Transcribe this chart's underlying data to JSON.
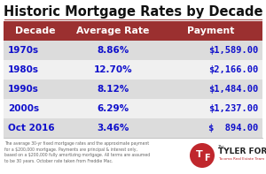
{
  "title": "Historic Mortgage Rates by Decade",
  "headers": [
    "Decade",
    "Average Rate",
    "Payment"
  ],
  "rows": [
    [
      "1970s",
      "8.86%",
      "$1,589.00"
    ],
    [
      "1980s",
      "12.70%",
      "$2,166.00"
    ],
    [
      "1990s",
      "8.12%",
      "$1,484.00"
    ],
    [
      "2000s",
      "6.29%",
      "$1,237.00"
    ],
    [
      "Oct 2016",
      "3.46%",
      "$  894.00"
    ]
  ],
  "header_bg": "#9B3030",
  "header_text": "#FFFFFF",
  "row_bg_light": "#DCDCDC",
  "row_bg_white": "#F0F0F0",
  "row_text": "#1010CC",
  "title_color": "#111111",
  "footer_text": "The average 30-yr fixed mortgage rates and the approximate payment\nfor a $200,000 mortgage. Payments are principal & interest only,\nbased on a $200,000 fully amortizing mortgage. All terms are assumed\nto be 30 years. October rate taken from Freddie Mac.",
  "bg_color": "#FFFFFF",
  "footer_color": "#666666",
  "logo_red": "#C0272D",
  "logo_text_color": "#222222",
  "logo_sub_color": "#C0272D",
  "title_underline_color": "#A05050"
}
